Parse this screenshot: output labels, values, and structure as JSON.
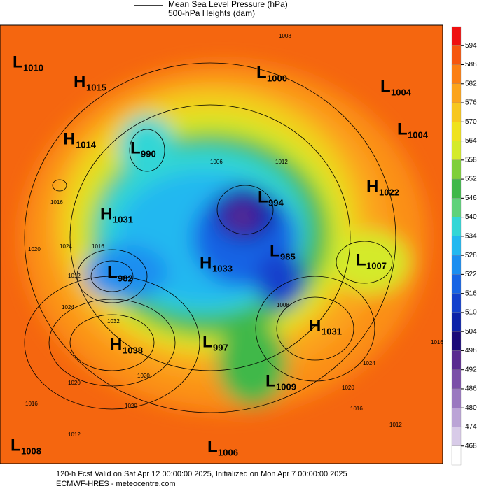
{
  "legend": {
    "mslp": "Mean Sea Level Pressure (hPa)",
    "heights": "500-hPa Heights (dam)"
  },
  "colorbar": {
    "ticks": [
      594,
      588,
      582,
      576,
      570,
      564,
      558,
      552,
      546,
      540,
      534,
      528,
      522,
      516,
      510,
      504,
      498,
      492,
      486,
      480,
      474,
      468
    ],
    "colors": [
      "#ee1111",
      "#f5560f",
      "#fb7f13",
      "#fba41c",
      "#f7c71f",
      "#efe21e",
      "#d4ea2a",
      "#7fcf3a",
      "#3fb84a",
      "#5fd27a",
      "#33d6d6",
      "#22b8f0",
      "#1a8ef0",
      "#1664e4",
      "#1240cc",
      "#0c22a8",
      "#1a0a78",
      "#5a2a90",
      "#7a4ea8",
      "#9a78c0",
      "#bba4d6",
      "#d8cbe8",
      "#ffffff"
    ]
  },
  "centers": [
    {
      "letter": "L",
      "pressure": 1010
    },
    {
      "letter": "H",
      "pressure": 1015
    },
    {
      "letter": "L",
      "pressure": 1000
    },
    {
      "letter": "L",
      "pressure": 1004
    },
    {
      "letter": "L",
      "pressure": 1004
    },
    {
      "letter": "H",
      "pressure": 1014
    },
    {
      "letter": "L",
      "pressure": 990
    },
    {
      "letter": "H",
      "pressure": 1022
    },
    {
      "letter": "L",
      "pressure": 994
    },
    {
      "letter": "H",
      "pressure": 1031
    },
    {
      "letter": "L",
      "pressure": 985
    },
    {
      "letter": "L",
      "pressure": 1007
    },
    {
      "letter": "H",
      "pressure": 1033
    },
    {
      "letter": "L",
      "pressure": 982
    },
    {
      "letter": "H",
      "pressure": 1031
    },
    {
      "letter": "H",
      "pressure": 1038
    },
    {
      "letter": "L",
      "pressure": 997
    },
    {
      "letter": "L",
      "pressure": 1009
    },
    {
      "letter": "L",
      "pressure": 1008
    },
    {
      "letter": "L",
      "pressure": 1006
    }
  ],
  "contour_labels": [
    1008,
    1006,
    1012,
    1016,
    1020,
    1024,
    1016,
    1012,
    1024,
    1032,
    1020,
    1020,
    1020,
    1016,
    1012,
    1016,
    1024,
    1020,
    1016,
    1012,
    1008
  ],
  "footer": {
    "line1": "120-h Fcst Valid on Sat Apr 12 00:00:00 2025, Initialized on Mon Apr  7 00:00:00 2025",
    "line2": "ECMWF-HRES  - meteocentre.com"
  }
}
